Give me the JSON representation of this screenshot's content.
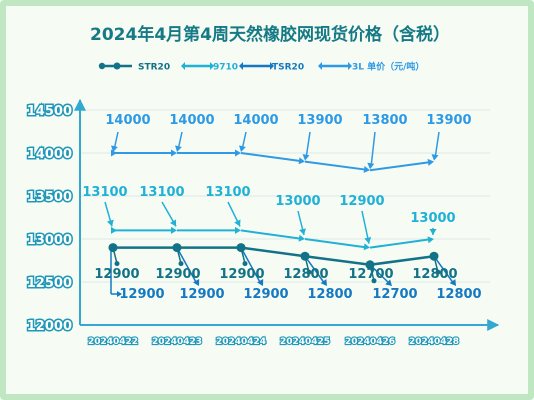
{
  "chart_data": {
    "type": "line",
    "title": "2024年4月第4周天然橡胶网现货价格（含税）",
    "categories": [
      "20240422",
      "20240423",
      "20240424",
      "20240425",
      "20240426",
      "20240428"
    ],
    "yticks": [
      "12000",
      "12500",
      "13000",
      "13500",
      "14000",
      "14500"
    ],
    "ylim": [
      12000,
      14700
    ],
    "grid": true,
    "legend_position": "top",
    "series": [
      {
        "name": "STR20",
        "values": [
          12900,
          12900,
          12900,
          12800,
          12700,
          12800
        ],
        "labels": [
          "12900",
          "12900",
          "12900",
          "12800",
          "12700",
          "12800"
        ],
        "color": "#127287",
        "marker": "circle"
      },
      {
        "name": "9710",
        "values": [
          13100,
          13100,
          13100,
          13000,
          12900,
          13000
        ],
        "labels": [
          "13100",
          "13100",
          "13100",
          "13000",
          "12900",
          "13000"
        ],
        "color": "#1fb2d6",
        "marker": "diamond"
      },
      {
        "name": "TSR20",
        "values": [
          12900,
          12900,
          12900,
          12800,
          12700,
          12800
        ],
        "labels": [
          "12900",
          "12900",
          "12900",
          "12800",
          "12700",
          "12800"
        ],
        "color": "#1579c2",
        "marker": "diamond"
      },
      {
        "name": "3L 单价（元/吨）",
        "values": [
          14000,
          14000,
          14000,
          13900,
          13800,
          13900
        ],
        "labels": [
          "14000",
          "14000",
          "14000",
          "13900",
          "13800",
          "13900"
        ],
        "color": "#2e9ae6",
        "marker": "diamond"
      }
    ]
  }
}
